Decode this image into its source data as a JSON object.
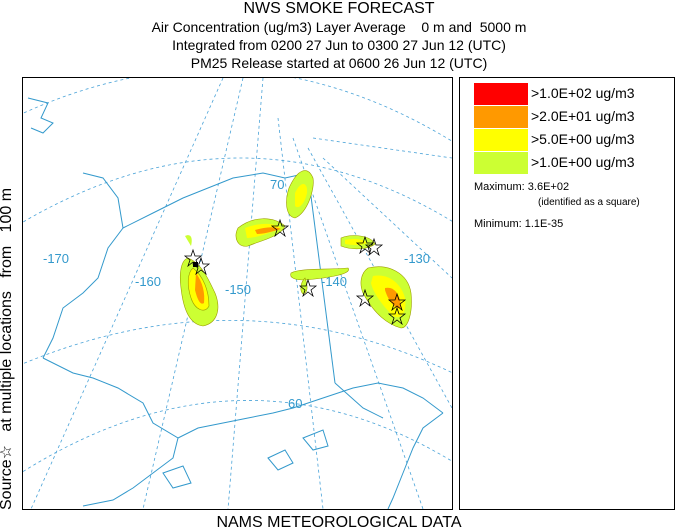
{
  "header": {
    "title": "NWS SMOKE FORECAST",
    "line2": "Air Concentration (ug/m3) Layer Average    0 m and  5000 m",
    "line3": "Integrated from 0200 27 Jun to 0300 27 Jun 12 (UTC)",
    "line4": "PM25 Release started at 0600 26 Jun 12 (UTC)"
  },
  "side_label": "Source☆   at multiple locations   from   100 m",
  "footer": "NAMS METEOROLOGICAL DATA",
  "map": {
    "lon_labels": [
      "-170",
      "-160",
      "-150",
      "-140",
      "-130"
    ],
    "lat_labels": [
      "70",
      "60"
    ],
    "grid_color": "#4aa3d8",
    "coast_color": "#3399cc"
  },
  "legend": {
    "items": [
      {
        "label": ">1.0E+02 ug/m3",
        "color": "#ff0000"
      },
      {
        "label": ">2.0E+01 ug/m3",
        "color": "#ff9900"
      },
      {
        "label": ">5.0E+00 ug/m3",
        "color": "#ffff00"
      },
      {
        "label": ">1.0E+00 ug/m3",
        "color": "#ccff33"
      }
    ],
    "maximum": "Maximum: 3.6E+02",
    "maximum_note": "(identified as a square)",
    "minimum": "Minimum: 1.1E-35"
  }
}
